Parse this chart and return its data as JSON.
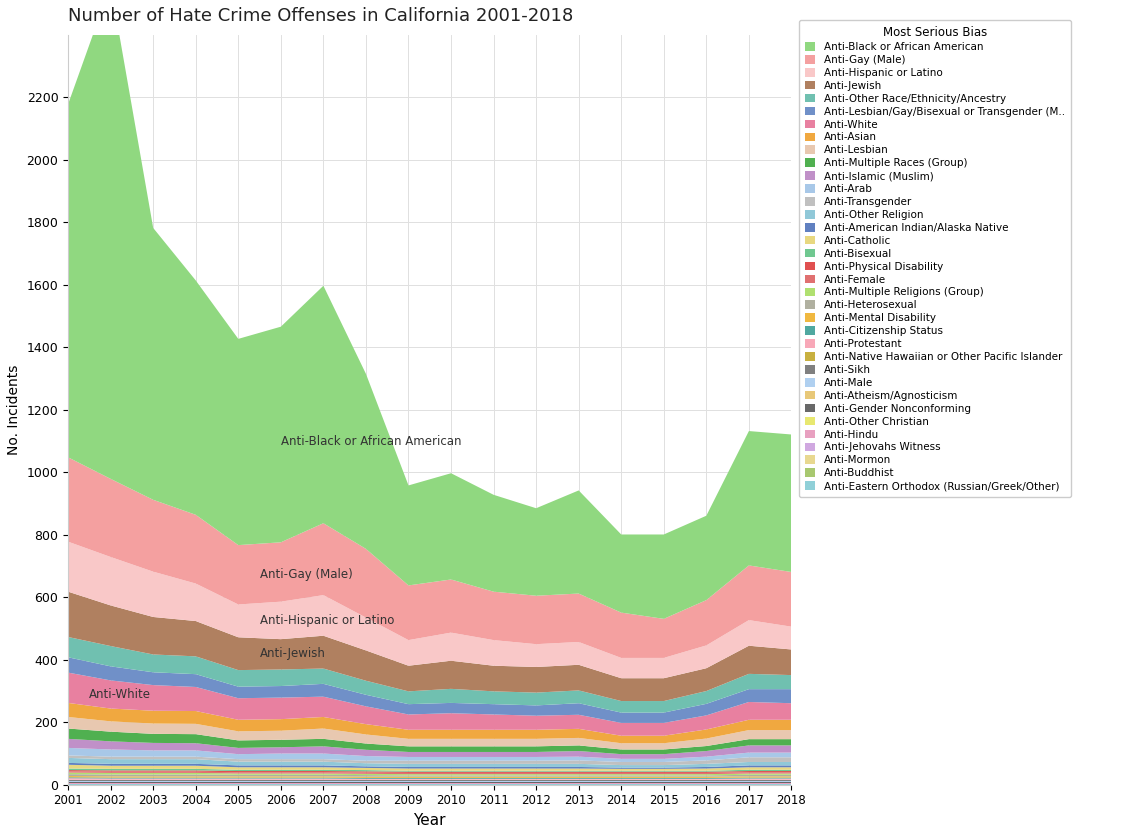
{
  "title": "Number of Hate Crime Offenses in California 2001-2018",
  "xlabel": "Year",
  "ylabel": "No. Incidents",
  "years": [
    2001,
    2002,
    2003,
    2004,
    2005,
    2006,
    2007,
    2008,
    2009,
    2010,
    2011,
    2012,
    2013,
    2014,
    2015,
    2016,
    2017,
    2018
  ],
  "categories": [
    "Anti-Eastern Orthodox (Russian/Greek/Other)",
    "Anti-Buddhist",
    "Anti-Mormon",
    "Anti-Jehovahs Witness",
    "Anti-Hindu",
    "Anti-Other Christian",
    "Anti-Gender Nonconforming",
    "Anti-Atheism/Agnosticism",
    "Anti-Male",
    "Anti-Sikh",
    "Anti-Native Hawaiian or Other Pacific Islander",
    "Anti-Protestant",
    "Anti-Citizenship Status",
    "Anti-Mental Disability",
    "Anti-Heterosexual",
    "Anti-Multiple Religions (Group)",
    "Anti-Female",
    "Anti-Physical Disability",
    "Anti-Bisexual",
    "Anti-Catholic",
    "Anti-American Indian/Alaska Native",
    "Anti-Other Religion",
    "Anti-Transgender",
    "Anti-Arab",
    "Anti-Islamic (Muslim)",
    "Anti-Multiple Races (Group)",
    "Anti-Lesbian",
    "Anti-Asian",
    "Anti-White",
    "Anti-Lesbian/Gay/Bisexual or Transgender (M..",
    "Anti-Other Race/Ethnicity/Ancestry",
    "Anti-Jewish",
    "Anti-Hispanic or Latino",
    "Anti-Gay (Male)",
    "Anti-Black or African American"
  ],
  "colors": [
    "#90d0d8",
    "#a8c870",
    "#e8d890",
    "#d0a8e0",
    "#e8a0c0",
    "#e8e870",
    "#686868",
    "#e8c878",
    "#b0d0f0",
    "#808080",
    "#c8b040",
    "#f8a8b8",
    "#50a8a0",
    "#f0b840",
    "#b0b0a0",
    "#b0e070",
    "#e07070",
    "#e05050",
    "#70c890",
    "#e8d880",
    "#6080c0",
    "#90c8d8",
    "#c0c0c0",
    "#a8c8e8",
    "#c090c8",
    "#50b050",
    "#e8c8b0",
    "#f0a840",
    "#e880a0",
    "#7090c8",
    "#70c0b0",
    "#b08060",
    "#f9c8c8",
    "#f4a0a0",
    "#90d880"
  ],
  "data": {
    "Anti-Black or African American": [
      1130,
      1580,
      870,
      750,
      660,
      690,
      760,
      560,
      320,
      340,
      310,
      280,
      330,
      250,
      270,
      270,
      430,
      440
    ],
    "Anti-Gay (Male)": [
      270,
      250,
      230,
      220,
      190,
      190,
      230,
      220,
      175,
      170,
      155,
      155,
      155,
      145,
      125,
      145,
      175,
      175
    ],
    "Anti-Hispanic or Latino": [
      160,
      155,
      145,
      120,
      105,
      120,
      130,
      105,
      82,
      90,
      82,
      73,
      73,
      65,
      65,
      73,
      82,
      73
    ],
    "Anti-Jewish": [
      145,
      130,
      120,
      113,
      105,
      97,
      105,
      97,
      82,
      90,
      82,
      82,
      82,
      73,
      73,
      73,
      90,
      82
    ],
    "Anti-Other Race/Ethnicity/Ancestry": [
      65,
      65,
      57,
      57,
      53,
      53,
      49,
      45,
      41,
      45,
      41,
      41,
      41,
      37,
      37,
      41,
      49,
      45
    ],
    "Anti-Lesbian/Gay/Bisexual or Transgender (M..": [
      49,
      45,
      41,
      41,
      37,
      37,
      41,
      37,
      33,
      33,
      33,
      33,
      37,
      33,
      33,
      37,
      41,
      45
    ],
    "Anti-White": [
      97,
      90,
      82,
      77,
      69,
      69,
      65,
      57,
      49,
      53,
      49,
      45,
      45,
      41,
      41,
      45,
      57,
      53
    ],
    "Anti-Asian": [
      45,
      41,
      41,
      41,
      37,
      37,
      37,
      33,
      29,
      29,
      29,
      29,
      29,
      24,
      24,
      29,
      33,
      33
    ],
    "Anti-Lesbian": [
      37,
      33,
      33,
      33,
      29,
      29,
      33,
      29,
      24,
      24,
      24,
      24,
      24,
      20,
      20,
      24,
      29,
      29
    ],
    "Anti-Multiple Races (Group)": [
      33,
      31,
      29,
      29,
      24,
      24,
      24,
      20,
      18,
      18,
      18,
      18,
      18,
      15,
      15,
      16,
      20,
      20
    ],
    "Anti-Islamic (Muslim)": [
      29,
      26,
      24,
      23,
      20,
      20,
      23,
      20,
      16,
      16,
      16,
      16,
      18,
      15,
      15,
      18,
      23,
      23
    ],
    "Anti-Arab": [
      24,
      23,
      20,
      20,
      16,
      18,
      18,
      15,
      12,
      12,
      12,
      12,
      12,
      10,
      10,
      12,
      15,
      15
    ],
    "Anti-Transgender": [
      8,
      8,
      8,
      8,
      8,
      8,
      8,
      8,
      10,
      10,
      10,
      10,
      11,
      10,
      10,
      11,
      15,
      15
    ],
    "Anti-Other Religion": [
      16,
      15,
      15,
      15,
      12,
      12,
      12,
      10,
      10,
      10,
      10,
      10,
      10,
      8,
      8,
      10,
      11,
      11
    ],
    "Anti-American Indian/Alaska Native": [
      6,
      6,
      6,
      6,
      6,
      6,
      6,
      5,
      5,
      5,
      5,
      5,
      5,
      4,
      4,
      5,
      6,
      6
    ],
    "Anti-Catholic": [
      12,
      10,
      10,
      10,
      8,
      8,
      8,
      7,
      7,
      7,
      7,
      7,
      7,
      6,
      6,
      7,
      8,
      8
    ],
    "Anti-Bisexual": [
      5,
      5,
      5,
      5,
      4,
      4,
      4,
      4,
      3,
      3,
      3,
      3,
      3,
      3,
      3,
      3,
      4,
      4
    ],
    "Anti-Physical Disability": [
      4,
      4,
      4,
      4,
      4,
      4,
      4,
      4,
      4,
      4,
      4,
      4,
      4,
      4,
      4,
      4,
      4,
      4
    ],
    "Anti-Female": [
      4,
      4,
      4,
      4,
      4,
      4,
      4,
      4,
      4,
      4,
      4,
      4,
      4,
      4,
      4,
      4,
      4,
      4
    ],
    "Anti-Multiple Religions (Group)": [
      5,
      5,
      5,
      5,
      4,
      4,
      4,
      4,
      4,
      4,
      4,
      4,
      4,
      4,
      4,
      4,
      4,
      4
    ],
    "Anti-Heterosexual": [
      6,
      6,
      6,
      6,
      5,
      5,
      5,
      5,
      4,
      4,
      4,
      4,
      4,
      4,
      4,
      4,
      5,
      5
    ],
    "Anti-Mental Disability": [
      4,
      4,
      4,
      4,
      4,
      4,
      4,
      4,
      4,
      4,
      4,
      4,
      4,
      4,
      4,
      4,
      4,
      4
    ],
    "Anti-Citizenship Status": [
      3,
      3,
      3,
      3,
      3,
      3,
      3,
      3,
      3,
      3,
      3,
      3,
      3,
      3,
      3,
      3,
      3,
      3
    ],
    "Anti-Protestant": [
      5,
      4,
      4,
      4,
      4,
      4,
      4,
      3,
      3,
      3,
      3,
      3,
      3,
      3,
      3,
      3,
      4,
      4
    ],
    "Anti-Native Hawaiian or Other Pacific Islander": [
      2,
      2,
      2,
      2,
      2,
      2,
      2,
      2,
      2,
      2,
      2,
      2,
      2,
      2,
      2,
      2,
      2,
      2
    ],
    "Anti-Sikh": [
      2,
      2,
      2,
      2,
      2,
      2,
      2,
      2,
      2,
      2,
      2,
      2,
      2,
      2,
      2,
      2,
      2,
      2
    ],
    "Anti-Male": [
      2,
      2,
      2,
      2,
      2,
      2,
      2,
      2,
      2,
      2,
      2,
      2,
      2,
      2,
      2,
      2,
      2,
      2
    ],
    "Anti-Atheism/Agnosticism": [
      2,
      2,
      2,
      2,
      2,
      2,
      2,
      2,
      2,
      2,
      2,
      2,
      2,
      2,
      2,
      2,
      2,
      2
    ],
    "Anti-Gender Nonconforming": [
      1,
      1,
      1,
      1,
      1,
      1,
      1,
      1,
      1,
      1,
      1,
      1,
      1,
      1,
      1,
      1,
      1,
      1
    ],
    "Anti-Other Christian": [
      2,
      2,
      2,
      2,
      2,
      2,
      2,
      2,
      2,
      2,
      2,
      2,
      2,
      2,
      2,
      2,
      2,
      2
    ],
    "Anti-Hindu": [
      1,
      1,
      1,
      1,
      1,
      1,
      1,
      1,
      1,
      1,
      1,
      1,
      1,
      1,
      1,
      1,
      1,
      1
    ],
    "Anti-Jehovahs Witness": [
      1,
      1,
      1,
      1,
      1,
      1,
      1,
      1,
      1,
      1,
      1,
      1,
      1,
      1,
      1,
      1,
      1,
      1
    ],
    "Anti-Mormon": [
      1,
      1,
      1,
      1,
      1,
      1,
      1,
      1,
      1,
      1,
      1,
      1,
      1,
      1,
      1,
      1,
      1,
      1
    ],
    "Anti-Buddhist": [
      1,
      1,
      1,
      1,
      1,
      1,
      1,
      1,
      1,
      1,
      1,
      1,
      1,
      1,
      1,
      1,
      1,
      1
    ],
    "Anti-Eastern Orthodox (Russian/Greek/Other)": [
      1,
      1,
      1,
      1,
      1,
      1,
      1,
      1,
      1,
      1,
      1,
      1,
      1,
      1,
      1,
      1,
      1,
      1
    ]
  }
}
